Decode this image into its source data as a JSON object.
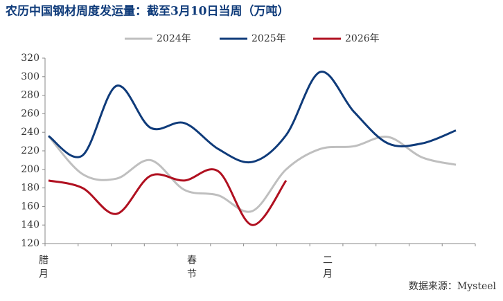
{
  "chart_data": {
    "type": "line",
    "title": "农历中国钢材周度发运量：截至3月10日当周（万吨）",
    "categories": [
      "腊月",
      null,
      null,
      null,
      "春节",
      null,
      null,
      null,
      "二月",
      null,
      null,
      null,
      null
    ],
    "series": [
      {
        "name": "2024年",
        "color": "#bfbfbf",
        "values": [
          236,
          195,
          190,
          210,
          178,
          172,
          155,
          200,
          222,
          225,
          235,
          213,
          205
        ]
      },
      {
        "name": "2025年",
        "color": "#0f3b7a",
        "values": [
          236,
          215,
          290,
          245,
          250,
          222,
          208,
          237,
          305,
          262,
          228,
          228,
          242
        ]
      },
      {
        "name": "2026年",
        "color": "#b01020",
        "values": [
          188,
          180,
          152,
          193,
          188,
          198,
          140,
          188,
          null,
          null,
          null,
          null,
          null
        ]
      }
    ],
    "ylim": [
      120,
      320
    ],
    "yticks": [
      120,
      140,
      160,
      180,
      200,
      220,
      240,
      260,
      280,
      300,
      320
    ],
    "source": "数据来源：Mysteel"
  }
}
